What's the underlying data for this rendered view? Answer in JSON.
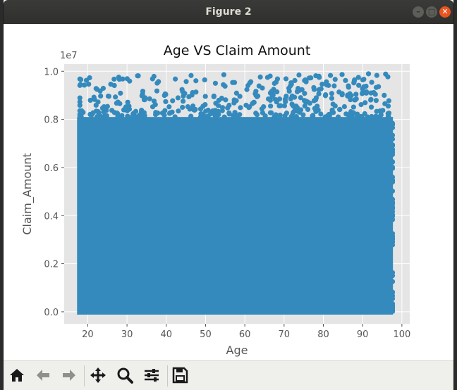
{
  "window": {
    "title": "Figure 2"
  },
  "toolbar": {
    "tools": [
      "home-icon",
      "back-arrow-icon",
      "forward-arrow-icon",
      "pan-move-icon",
      "zoom-magnifier-icon",
      "configure-subplots-icon",
      "save-floppy-icon"
    ]
  },
  "colors": {
    "point": "#348abd",
    "axes_bg": "#e5e5e5",
    "grid": "#ffffff",
    "close_button": "#e95420"
  },
  "chart_data": {
    "type": "scatter",
    "title": "Age VS Claim Amount",
    "xlabel": "Age",
    "ylabel": "Claim_Amount",
    "y_offset_label": "1e7",
    "xlim": [
      14,
      102
    ],
    "ylim": [
      -500000,
      10300000
    ],
    "x_ticks": [
      20,
      30,
      40,
      50,
      60,
      70,
      80,
      90,
      100
    ],
    "y_ticks": [
      0.0,
      0.2,
      0.4,
      0.6,
      0.8,
      1.0
    ],
    "y_tick_labels": [
      "0.0",
      "0.2",
      "0.4",
      "0.6",
      "0.8",
      "1.0"
    ],
    "grid": true,
    "x_range": [
      18,
      98
    ],
    "y_range": [
      0,
      9900000
    ],
    "series": [
      {
        "dense_fill_x": [
          18,
          97
        ],
        "dense_fill_y": [
          0,
          8100000
        ]
      }
    ]
  }
}
